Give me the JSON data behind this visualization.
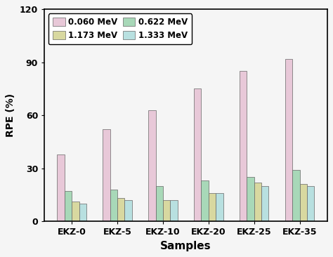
{
  "categories": [
    "EKZ-0",
    "EKZ-5",
    "EKZ-10",
    "EKZ-20",
    "EKZ-25",
    "EKZ-35"
  ],
  "series": [
    {
      "label": "0.060 MeV",
      "color": "#e8c8d8",
      "values": [
        38,
        52,
        63,
        75,
        85,
        92
      ]
    },
    {
      "label": "0.622 MeV",
      "color": "#a8d8b8",
      "values": [
        17,
        18,
        20,
        23,
        25,
        29
      ]
    },
    {
      "label": "1.173 MeV",
      "color": "#d8d8a0",
      "values": [
        11,
        13,
        12,
        16,
        22,
        21
      ]
    },
    {
      "label": "1.333 MeV",
      "color": "#b8e0e0",
      "values": [
        10,
        12,
        12,
        16,
        20,
        20
      ]
    }
  ],
  "ylabel": "RPE (%)",
  "xlabel": "Samples",
  "ylim": [
    0,
    120
  ],
  "yticks": [
    0,
    30,
    60,
    90,
    120
  ],
  "legend_loc": "upper left",
  "bar_width": 0.16,
  "background_color": "#f5f5f5",
  "edge_color": "#666666",
  "legend_order": [
    0,
    2,
    1,
    3
  ]
}
